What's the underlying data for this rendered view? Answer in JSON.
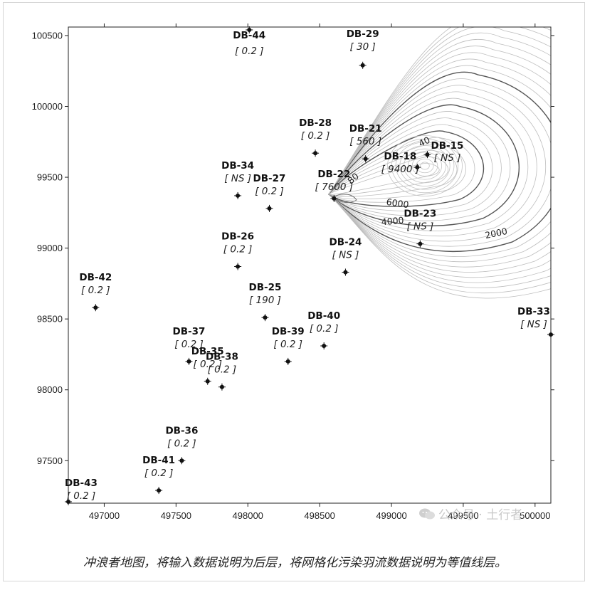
{
  "axes": {
    "x_ticks": [
      497000,
      497500,
      498000,
      498500,
      499000,
      499500,
      500000
    ],
    "y_ticks": [
      97500,
      98000,
      98500,
      99000,
      99500,
      100000,
      100500
    ],
    "x_range": [
      496750,
      500110
    ],
    "y_range": [
      97200,
      100560
    ]
  },
  "wells": [
    {
      "id": "DB-44",
      "value": "[ 0.2 ]",
      "x": 498010,
      "y": 100540
    },
    {
      "id": "DB-29",
      "value": "[ 30 ]",
      "x": 498800,
      "y": 100290
    },
    {
      "id": "DB-28",
      "value": "[ 0.2 ]",
      "x": 498470,
      "y": 99670
    },
    {
      "id": "DB-21",
      "value": "[ 560 ]",
      "x": 498820,
      "y": 99630
    },
    {
      "id": "DB-18",
      "value": "[ 9400 ]",
      "x": 499180,
      "y": 99570
    },
    {
      "id": "DB-15",
      "value": "[ NS ]",
      "x": 499250,
      "y": 99660
    },
    {
      "id": "DB-34",
      "value": "[ NS ]",
      "x": 497930,
      "y": 99370
    },
    {
      "id": "DB-27",
      "value": "[ 0.2 ]",
      "x": 498150,
      "y": 99280
    },
    {
      "id": "DB-22",
      "value": "[ 7600 ]",
      "x": 498600,
      "y": 99350
    },
    {
      "id": "DB-23",
      "value": "[ NS ]",
      "x": 499200,
      "y": 99030
    },
    {
      "id": "DB-26",
      "value": "[ 0.2 ]",
      "x": 497930,
      "y": 98870
    },
    {
      "id": "DB-24",
      "value": "[ NS ]",
      "x": 498680,
      "y": 98830
    },
    {
      "id": "DB-42",
      "value": "[ 0.2 ]",
      "x": 496940,
      "y": 98580
    },
    {
      "id": "DB-25",
      "value": "[ 190 ]",
      "x": 498120,
      "y": 98510
    },
    {
      "id": "DB-33",
      "value": "[ NS ]",
      "x": 500110,
      "y": 98390
    },
    {
      "id": "DB-40",
      "value": "[ 0.2 ]",
      "x": 498530,
      "y": 98310
    },
    {
      "id": "DB-37",
      "value": "[ 0.2 ]",
      "x": 497590,
      "y": 98200
    },
    {
      "id": "DB-39",
      "value": "[ 0.2 ]",
      "x": 498280,
      "y": 98200
    },
    {
      "id": "DB-35",
      "value": "[ 0.2 ]",
      "x": 497720,
      "y": 98060
    },
    {
      "id": "DB-38",
      "value": "[ 0.2 ]",
      "x": 497820,
      "y": 98020
    },
    {
      "id": "DB-36",
      "value": "[ 0.2 ]",
      "x": 497540,
      "y": 97500
    },
    {
      "id": "DB-41",
      "value": "[ 0.2 ]",
      "x": 497380,
      "y": 97290
    },
    {
      "id": "DB-43",
      "value": "[ 0.2 ]",
      "x": 496750,
      "y": 97210
    }
  ],
  "contour_labels": [
    "2000",
    "4000",
    "6000",
    "40",
    "80"
  ],
  "watermark": "公众号 · 土行者",
  "caption": "冲浪者地图，将输入数据说明为后层，将网格化污染羽流数据说明为等值线层。"
}
